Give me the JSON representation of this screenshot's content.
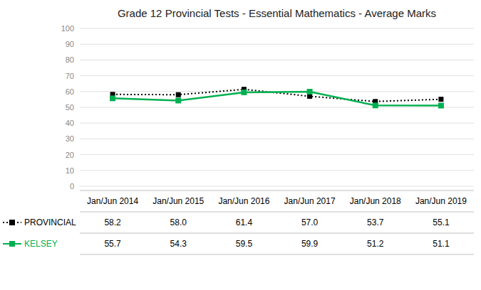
{
  "chart_data": {
    "type": "line",
    "title": "Grade 12 Provincial Tests - Essential Mathematics - Average Marks",
    "categories": [
      "Jan/Jun 2014",
      "Jan/Jun 2015",
      "Jan/Jun 2016",
      "Jan/Jun 2017",
      "Jan/Jun 2018",
      "Jan/Jun 2019"
    ],
    "series": [
      {
        "name": "PROVINCIAL",
        "color": "#000000",
        "line_style": "dotted",
        "marker": "square",
        "values": [
          58.2,
          58.0,
          61.4,
          57.0,
          53.7,
          55.1
        ],
        "value_labels": [
          "58.2",
          "58.0",
          "61.4",
          "57.0",
          "53.7",
          "55.1"
        ]
      },
      {
        "name": "KELSEY",
        "color": "#00b050",
        "line_style": "solid",
        "marker": "square",
        "values": [
          55.7,
          54.3,
          59.5,
          59.9,
          51.2,
          51.1
        ]
      }
    ],
    "ylim": [
      0,
      100
    ],
    "yticks": [
      0,
      10,
      20,
      30,
      40,
      50,
      60,
      70,
      80,
      90,
      100
    ],
    "grid": true,
    "data_labels": true
  }
}
